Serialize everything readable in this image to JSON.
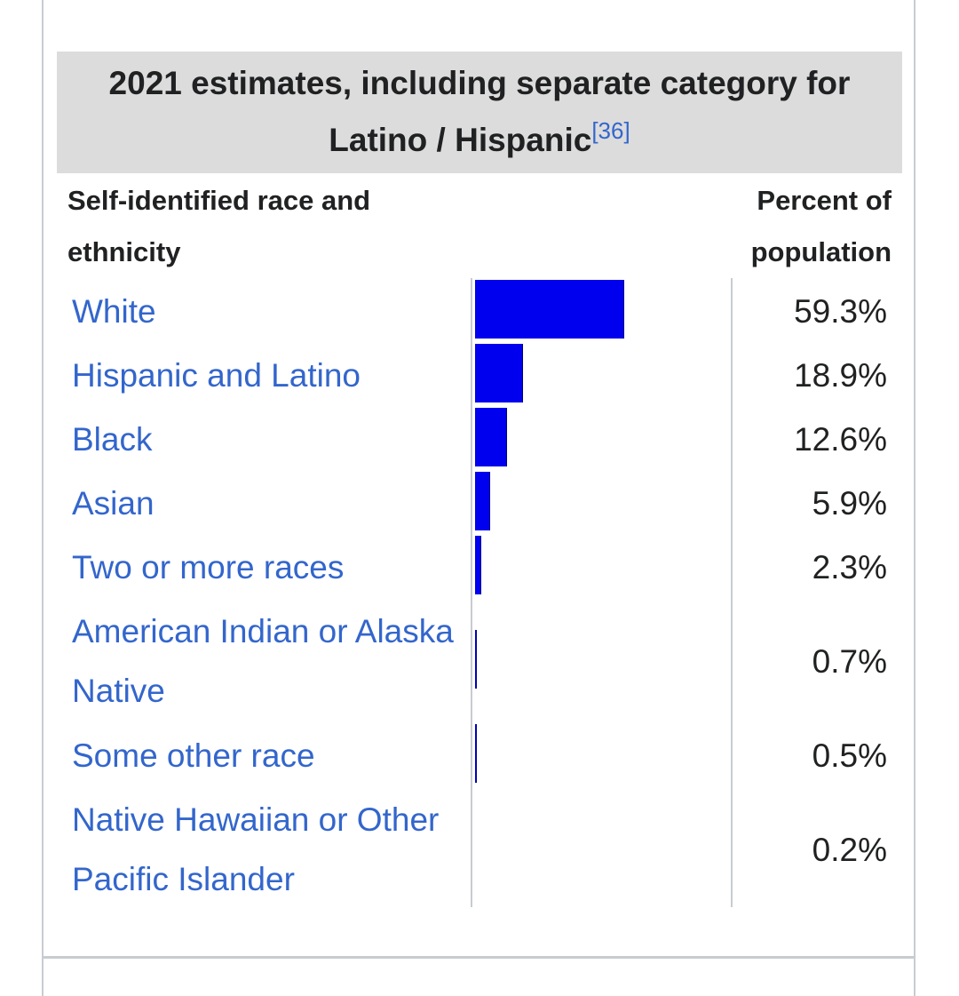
{
  "caption": {
    "text": "2021 estimates, including separate category for Latino / Hispanic",
    "ref": "[36]"
  },
  "headers": {
    "label": "Self-identified race and ethnicity",
    "value": "Percent of population"
  },
  "colors": {
    "bar": "#0000ee",
    "link": "#3366cc",
    "caption_bg": "#dcdcdc"
  },
  "chart_data": {
    "type": "bar",
    "orientation": "horizontal",
    "categories": [
      "White",
      "Hispanic and Latino",
      "Black",
      "Asian",
      "Two or more races",
      "American Indian or Alaska Native",
      "Some other race",
      "Native Hawaiian or Other Pacific Islander"
    ],
    "values": [
      59.3,
      18.9,
      12.6,
      5.9,
      2.3,
      0.7,
      0.5,
      0.2
    ],
    "value_labels": [
      "59.3%",
      "18.9%",
      "12.6%",
      "5.9%",
      "2.3%",
      "0.7%",
      "0.5%",
      "0.2%"
    ],
    "xlim": [
      0,
      100
    ],
    "grid": false,
    "legend": "none"
  }
}
